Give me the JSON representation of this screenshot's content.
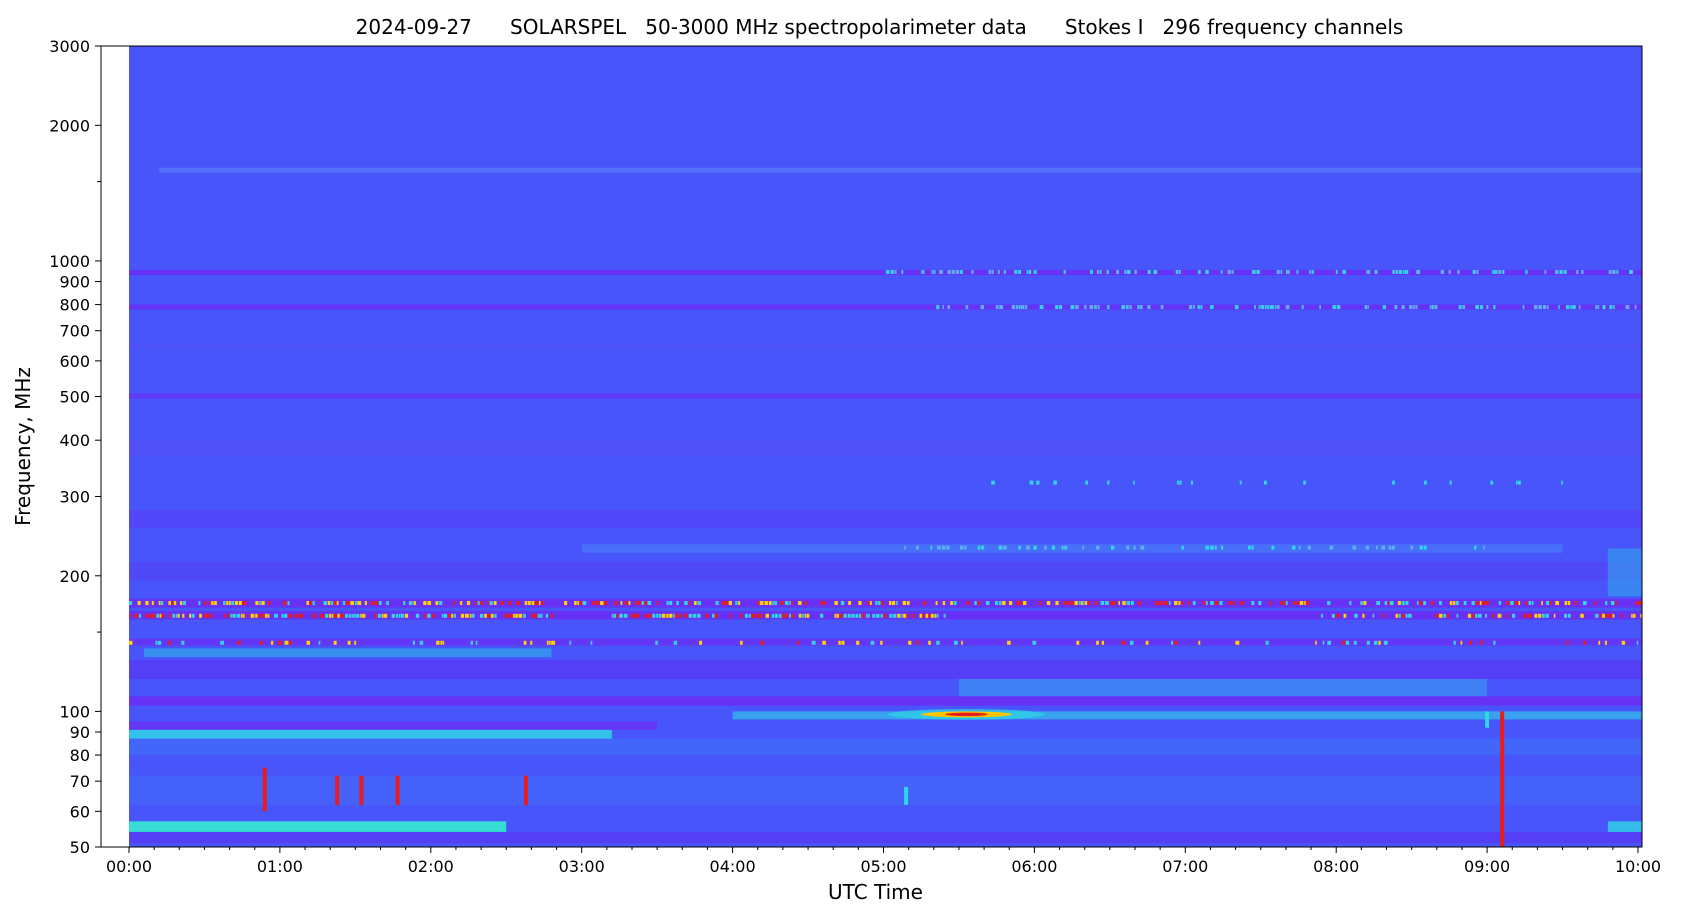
{
  "chart_data": {
    "type": "heatmap",
    "title": "2024-09-27      SOLARSPEL   50-3000 MHz spectropolarimeter data      Stokes I   296 frequency channels",
    "xlabel": "UTC Time",
    "ylabel": "Frequency, MHz",
    "x_range_hours": [
      0,
      10.2
    ],
    "x_ticks": [
      {
        "hour": 0,
        "label": "00:00"
      },
      {
        "hour": 1,
        "label": "01:00"
      },
      {
        "hour": 2,
        "label": "02:00"
      },
      {
        "hour": 3,
        "label": "03:00"
      },
      {
        "hour": 4,
        "label": "04:00"
      },
      {
        "hour": 5,
        "label": "05:00"
      },
      {
        "hour": 6,
        "label": "06:00"
      },
      {
        "hour": 7,
        "label": "07:00"
      },
      {
        "hour": 8,
        "label": "08:00"
      },
      {
        "hour": 9,
        "label": "09:00"
      },
      {
        "hour": 10,
        "label": "10:00"
      }
    ],
    "y_scale": "log",
    "y_range_mhz": [
      50,
      3000
    ],
    "y_ticks": [
      {
        "mhz": 3000,
        "label": "3000"
      },
      {
        "mhz": 2000,
        "label": "2000"
      },
      {
        "mhz": 1000,
        "label": "1000"
      },
      {
        "mhz": 900,
        "label": "900"
      },
      {
        "mhz": 800,
        "label": "800"
      },
      {
        "mhz": 700,
        "label": "700"
      },
      {
        "mhz": 600,
        "label": "600"
      },
      {
        "mhz": 500,
        "label": "500"
      },
      {
        "mhz": 400,
        "label": "400"
      },
      {
        "mhz": 300,
        "label": "300"
      },
      {
        "mhz": 200,
        "label": "200"
      },
      {
        "mhz": 100,
        "label": "100"
      },
      {
        "mhz": 90,
        "label": "90"
      },
      {
        "mhz": 80,
        "label": "80"
      },
      {
        "mhz": 70,
        "label": "70"
      },
      {
        "mhz": 60,
        "label": "60"
      },
      {
        "mhz": 50,
        "label": "50"
      }
    ],
    "y_minor_ticks_mhz": [
      1500,
      150
    ],
    "data_start_hour": 0,
    "colors": {
      "background": "#4755fb",
      "low": "#6c2ef5",
      "mid": "#2fd6e6",
      "high": "#e81c1c",
      "peak": "#ffc400"
    },
    "bands": [
      {
        "f_lo": 1570,
        "f_hi": 1610,
        "t_start": 0.2,
        "t_end": 10.2,
        "color": "#5a7dfb",
        "opacity": 0.7
      },
      {
        "f_lo": 930,
        "f_hi": 955,
        "t_start": 0.0,
        "t_end": 10.2,
        "color": "#6c2ef5",
        "opacity": 0.9
      },
      {
        "f_lo": 780,
        "f_hi": 800,
        "t_start": 0.0,
        "t_end": 10.2,
        "color": "#6c2ef5",
        "opacity": 0.85
      },
      {
        "f_lo": 495,
        "f_hi": 508,
        "t_start": 0.0,
        "t_end": 10.2,
        "color": "#6c2ef5",
        "opacity": 0.7
      },
      {
        "f_lo": 640,
        "f_hi": 655,
        "t_start": 0.0,
        "t_end": 10.2,
        "color": "#5850f8",
        "opacity": 0.5
      },
      {
        "f_lo": 370,
        "f_hi": 400,
        "t_start": 0.0,
        "t_end": 10.2,
        "color": "#5a49f6",
        "opacity": 0.5
      },
      {
        "f_lo": 255,
        "f_hi": 280,
        "t_start": 0.0,
        "t_end": 10.2,
        "color": "#5a3ef6",
        "opacity": 0.6
      },
      {
        "f_lo": 225,
        "f_hi": 235,
        "t_start": 3.0,
        "t_end": 9.5,
        "color": "#4a8af7",
        "opacity": 0.5
      },
      {
        "f_lo": 195,
        "f_hi": 215,
        "t_start": 0.0,
        "t_end": 10.2,
        "color": "#5a3ef6",
        "opacity": 0.5
      },
      {
        "f_lo": 170,
        "f_hi": 178,
        "t_start": 0.0,
        "t_end": 10.2,
        "color": "#6c2ef5",
        "opacity": 0.9
      },
      {
        "f_lo": 160,
        "f_hi": 167,
        "t_start": 0.0,
        "t_end": 10.2,
        "color": "#6c2ef5",
        "opacity": 0.9
      },
      {
        "f_lo": 140,
        "f_hi": 145,
        "t_start": 0.0,
        "t_end": 10.2,
        "color": "#6c2ef5",
        "opacity": 0.8
      },
      {
        "f_lo": 132,
        "f_hi": 138,
        "t_start": 0.1,
        "t_end": 2.8,
        "color": "#2fb6ea",
        "opacity": 0.6
      },
      {
        "f_lo": 118,
        "f_hi": 130,
        "t_start": 0.0,
        "t_end": 10.2,
        "color": "#5a34f4",
        "opacity": 0.7
      },
      {
        "f_lo": 108,
        "f_hi": 118,
        "t_start": 5.5,
        "t_end": 9.0,
        "color": "#3a9ff0",
        "opacity": 0.6
      },
      {
        "f_lo": 103,
        "f_hi": 108,
        "t_start": 0.0,
        "t_end": 10.2,
        "color": "#6c2ef5",
        "opacity": 0.9
      },
      {
        "f_lo": 96,
        "f_hi": 100,
        "t_start": 4.0,
        "t_end": 10.2,
        "color": "#2fd6e6",
        "opacity": 0.6
      },
      {
        "f_lo": 91,
        "f_hi": 95,
        "t_start": 0.0,
        "t_end": 3.5,
        "color": "#6c2ef5",
        "opacity": 0.8
      },
      {
        "f_lo": 87,
        "f_hi": 91,
        "t_start": 0.0,
        "t_end": 3.2,
        "color": "#2fd6e6",
        "opacity": 0.85
      },
      {
        "f_lo": 80,
        "f_hi": 87,
        "t_start": 0.0,
        "t_end": 10.2,
        "color": "#3e7af5",
        "opacity": 0.5
      },
      {
        "f_lo": 62,
        "f_hi": 72,
        "t_start": 0.0,
        "t_end": 10.2,
        "color": "#3e7af5",
        "opacity": 0.35
      },
      {
        "f_lo": 54,
        "f_hi": 57,
        "t_start": 0.0,
        "t_end": 2.5,
        "color": "#38e6d4",
        "opacity": 0.95
      },
      {
        "f_lo": 51,
        "f_hi": 54,
        "t_start": 0.0,
        "t_end": 10.2,
        "color": "#5a34f4",
        "opacity": 0.7
      },
      {
        "f_lo": 54,
        "f_hi": 57,
        "t_start": 9.8,
        "t_end": 10.2,
        "color": "#2fd6e6",
        "opacity": 0.8
      },
      {
        "f_lo": 180,
        "f_hi": 230,
        "t_start": 9.8,
        "t_end": 10.2,
        "color": "#2fb6ea",
        "opacity": 0.5
      }
    ],
    "rfi_rows": [
      {
        "f": 174,
        "t_start": 0.0,
        "t_end": 10.2,
        "density": 0.55,
        "colors": [
          "#e81c1c",
          "#2fd6e6",
          "#ffd400"
        ]
      },
      {
        "f": 163,
        "t_start": 0.0,
        "t_end": 2.8,
        "density": 0.75,
        "colors": [
          "#e81c1c",
          "#ffd400",
          "#2fd6e6"
        ]
      },
      {
        "f": 163,
        "t_start": 3.2,
        "t_end": 5.4,
        "density": 0.65,
        "colors": [
          "#e81c1c",
          "#ffd400",
          "#2fd6e6"
        ]
      },
      {
        "f": 163,
        "t_start": 7.9,
        "t_end": 10.2,
        "density": 0.5,
        "colors": [
          "#e81c1c",
          "#ffd400",
          "#2fd6e6"
        ]
      },
      {
        "f": 142,
        "t_start": 0.0,
        "t_end": 10.2,
        "density": 0.22,
        "colors": [
          "#e81c1c",
          "#2fd6e6",
          "#ffd400"
        ]
      },
      {
        "f": 945,
        "t_start": 5.0,
        "t_end": 10.2,
        "density": 0.3,
        "colors": [
          "#2fd6e6",
          "#5ab0f0"
        ]
      },
      {
        "f": 790,
        "t_start": 5.2,
        "t_end": 10.2,
        "density": 0.35,
        "colors": [
          "#2fd6e6",
          "#5ab0f0"
        ]
      },
      {
        "f": 322,
        "t_start": 5.5,
        "t_end": 9.6,
        "density": 0.08,
        "colors": [
          "#2fd6e6"
        ]
      },
      {
        "f": 231,
        "t_start": 5.0,
        "t_end": 9.0,
        "density": 0.25,
        "colors": [
          "#2fd6e6",
          "#5ab0f0"
        ]
      }
    ],
    "features": [
      {
        "name": "burst-0500",
        "t_center": 5.55,
        "t_halfwidth": 0.4,
        "f_lo": 97,
        "f_hi": 100,
        "color": "#ffc400",
        "core": "#e81c1c"
      },
      {
        "name": "spike-0053",
        "t": 0.9,
        "f_lo": 60,
        "f_hi": 75,
        "color": "#e81c1c"
      },
      {
        "name": "spike-0123",
        "t": 1.38,
        "f_lo": 62,
        "f_hi": 72,
        "color": "#e81c1c"
      },
      {
        "name": "spike-0132",
        "t": 1.54,
        "f_lo": 62,
        "f_hi": 72,
        "color": "#e81c1c"
      },
      {
        "name": "spike-0147",
        "t": 1.78,
        "f_lo": 62,
        "f_hi": 72,
        "color": "#e81c1c"
      },
      {
        "name": "spike-0237",
        "t": 2.63,
        "f_lo": 62,
        "f_hi": 72,
        "color": "#e81c1c"
      },
      {
        "name": "burst-0510",
        "t": 5.15,
        "f_lo": 62,
        "f_hi": 68,
        "color": "#2fd6e6"
      },
      {
        "name": "spike-0906",
        "t": 9.1,
        "f_lo": 50,
        "f_hi": 100,
        "color": "#e81c1c"
      },
      {
        "name": "type3-0900",
        "t": 9.0,
        "f_lo": 92,
        "f_hi": 100,
        "color": "#2fd6e6"
      }
    ]
  }
}
